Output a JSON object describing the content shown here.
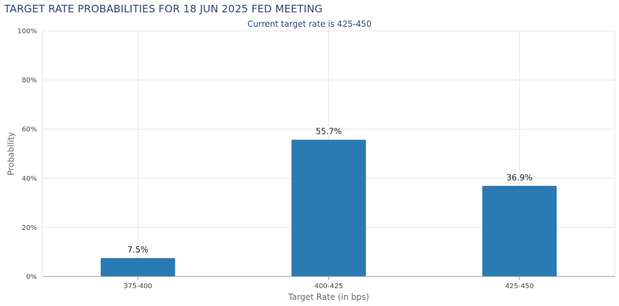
{
  "chart_data": {
    "type": "bar",
    "title": "TARGET RATE PROBABILITIES FOR 18 JUN 2025 FED MEETING",
    "subtitle": "Current target rate is 425-450",
    "xlabel": "Target Rate (in bps)",
    "ylabel": "Probability",
    "categories": [
      "375-400",
      "400-425",
      "425-450"
    ],
    "values": [
      7.5,
      55.7,
      36.9
    ],
    "data_labels": [
      "7.5%",
      "55.7%",
      "36.9%"
    ],
    "ylim": [
      0,
      100
    ],
    "yticks": [
      0,
      20,
      40,
      60,
      80,
      100
    ],
    "ytick_labels": [
      "0%",
      "20%",
      "40%",
      "60%",
      "80%",
      "100%"
    ],
    "grid": true,
    "bar_color": "#2a7ab4"
  }
}
